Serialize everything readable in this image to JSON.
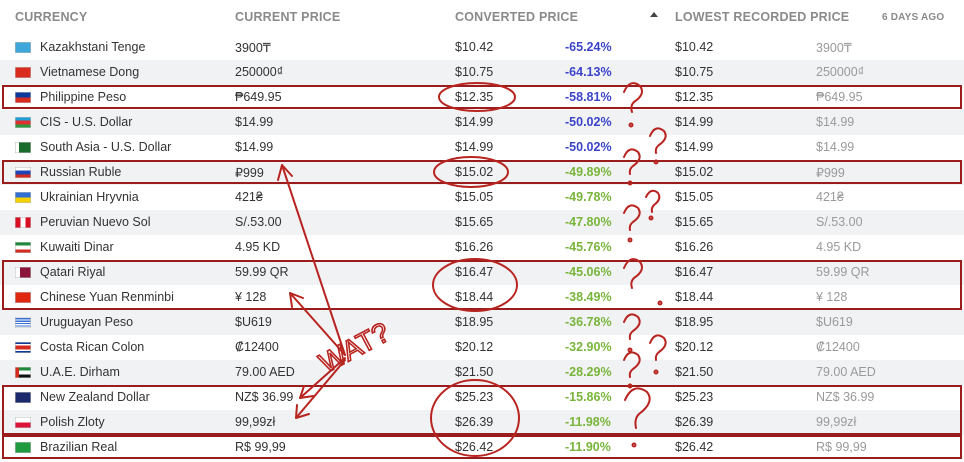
{
  "header": {
    "currency": "CURRENCY",
    "current_price": "CURRENT PRICE",
    "converted_price": "CONVERTED PRICE",
    "lowest_recorded": "LOWEST RECORDED PRICE",
    "days_ago": "6 DAYS AGO"
  },
  "rows": [
    {
      "currency": "Kazakhstani Tenge",
      "current": "3900₸",
      "converted": "$10.42",
      "pct": "-65.24%",
      "lowest_usd": "$10.42",
      "lowest_local": "3900₸",
      "flag": "kazakhstan-flag"
    },
    {
      "currency": "Vietnamese Dong",
      "current": "250000₫",
      "converted": "$10.75",
      "pct": "-64.13%",
      "lowest_usd": "$10.75",
      "lowest_local": "250000₫",
      "flag": "vietnam-flag"
    },
    {
      "currency": "Philippine Peso",
      "current": "₱649.95",
      "converted": "$12.35",
      "pct": "-58.81%",
      "lowest_usd": "$12.35",
      "lowest_local": "₱649.95",
      "flag": "philippines-flag"
    },
    {
      "currency": "CIS - U.S. Dollar",
      "current": "$14.99",
      "converted": "$14.99",
      "pct": "-50.02%",
      "lowest_usd": "$14.99",
      "lowest_local": "$14.99",
      "flag": "azerbaijan-flag"
    },
    {
      "currency": "South Asia - U.S. Dollar",
      "current": "$14.99",
      "converted": "$14.99",
      "pct": "-50.02%",
      "lowest_usd": "$14.99",
      "lowest_local": "$14.99",
      "flag": "pakistan-flag"
    },
    {
      "currency": "Russian Ruble",
      "current": "₽999",
      "converted": "$15.02",
      "pct": "-49.89%",
      "lowest_usd": "$15.02",
      "lowest_local": "₽999",
      "flag": "russia-flag"
    },
    {
      "currency": "Ukrainian Hryvnia",
      "current": "421₴",
      "converted": "$15.05",
      "pct": "-49.78%",
      "lowest_usd": "$15.05",
      "lowest_local": "421₴",
      "flag": "ukraine-flag"
    },
    {
      "currency": "Peruvian Nuevo Sol",
      "current": "S/.53.00",
      "converted": "$15.65",
      "pct": "-47.80%",
      "lowest_usd": "$15.65",
      "lowest_local": "S/.53.00",
      "flag": "peru-flag"
    },
    {
      "currency": "Kuwaiti Dinar",
      "current": "4.95 KD",
      "converted": "$16.26",
      "pct": "-45.76%",
      "lowest_usd": "$16.26",
      "lowest_local": "4.95 KD",
      "flag": "kuwait-flag"
    },
    {
      "currency": "Qatari Riyal",
      "current": "59.99 QR",
      "converted": "$16.47",
      "pct": "-45.06%",
      "lowest_usd": "$16.47",
      "lowest_local": "59.99 QR",
      "flag": "qatar-flag"
    },
    {
      "currency": "Chinese Yuan Renminbi",
      "current": "¥ 128",
      "converted": "$18.44",
      "pct": "-38.49%",
      "lowest_usd": "$18.44",
      "lowest_local": "¥ 128",
      "flag": "china-flag"
    },
    {
      "currency": "Uruguayan Peso",
      "current": "$U619",
      "converted": "$18.95",
      "pct": "-36.78%",
      "lowest_usd": "$18.95",
      "lowest_local": "$U619",
      "flag": "uruguay-flag"
    },
    {
      "currency": "Costa Rican Colon",
      "current": "₡12400",
      "converted": "$20.12",
      "pct": "-32.90%",
      "lowest_usd": "$20.12",
      "lowest_local": "₡12400",
      "flag": "costa-rica-flag"
    },
    {
      "currency": "U.A.E. Dirham",
      "current": "79.00 AED",
      "converted": "$21.50",
      "pct": "-28.29%",
      "lowest_usd": "$21.50",
      "lowest_local": "79.00 AED",
      "flag": "uae-flag"
    },
    {
      "currency": "New Zealand Dollar",
      "current": "NZ$ 36.99",
      "converted": "$25.23",
      "pct": "-15.86%",
      "lowest_usd": "$25.23",
      "lowest_local": "NZ$ 36.99",
      "flag": "new-zealand-flag"
    },
    {
      "currency": "Polish Zloty",
      "current": "99,99zł",
      "converted": "$26.39",
      "pct": "-11.98%",
      "lowest_usd": "$26.39",
      "lowest_local": "99,99zł",
      "flag": "poland-flag"
    },
    {
      "currency": "Brazilian Real",
      "current": "R$ 99,99",
      "converted": "$26.42",
      "pct": "-11.90%",
      "lowest_usd": "$26.42",
      "lowest_local": "R$ 99,99",
      "flag": "brazil-flag"
    }
  ],
  "annotation": {
    "text": "WAT?"
  },
  "colors": {
    "highlight": "#9b1c1c",
    "pct_blue": "#3b44c9",
    "pct_green": "#79b53b"
  }
}
